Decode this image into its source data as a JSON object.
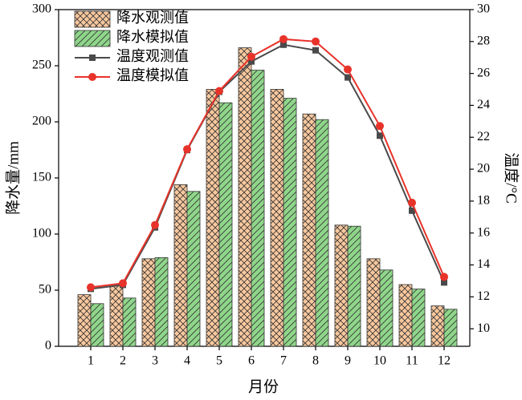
{
  "chart_data": {
    "type": "bar",
    "x": [
      1,
      2,
      3,
      4,
      5,
      6,
      7,
      8,
      9,
      10,
      11,
      12
    ],
    "xlim": [
      0,
      12.8
    ],
    "xticks": [
      1,
      2,
      3,
      4,
      5,
      6,
      7,
      8,
      9,
      10,
      11,
      12
    ],
    "xlabel": "月份",
    "ylabel": "降水量/mm",
    "y2label": "温度/°C",
    "ylim": [
      0,
      300
    ],
    "yticks": [
      0,
      50,
      100,
      150,
      200,
      250,
      300
    ],
    "y2lim": [
      8.9,
      30
    ],
    "y2ticks": [
      10,
      12,
      14,
      16,
      18,
      20,
      22,
      24,
      26,
      28,
      30
    ],
    "legend": "upper left",
    "series": [
      {
        "name": "降水观测值",
        "type": "bar",
        "pattern": "crosshatch",
        "color": "#f9c89e",
        "values": [
          46,
          55,
          78,
          144,
          229,
          266,
          229,
          207,
          108,
          78,
          55,
          36
        ]
      },
      {
        "name": "降水模拟值",
        "type": "bar",
        "pattern": "hatch",
        "color": "#8fd68a",
        "values": [
          38,
          43,
          79,
          138,
          217,
          246,
          221,
          202,
          107,
          68,
          51,
          33
        ]
      },
      {
        "name": "温度观测值",
        "type": "line",
        "marker": "square",
        "axis": "y2",
        "color": "#4a4a4a",
        "values": [
          12.5,
          12.75,
          16.35,
          21.2,
          24.85,
          26.75,
          27.8,
          27.45,
          25.75,
          22.1,
          17.4,
          12.9
        ]
      },
      {
        "name": "温度模拟值",
        "type": "line",
        "marker": "circle",
        "axis": "y2",
        "color": "#e8332a",
        "values": [
          12.6,
          12.85,
          16.5,
          21.25,
          24.9,
          27.05,
          28.15,
          28.0,
          26.25,
          22.7,
          17.9,
          13.25
        ]
      }
    ]
  }
}
